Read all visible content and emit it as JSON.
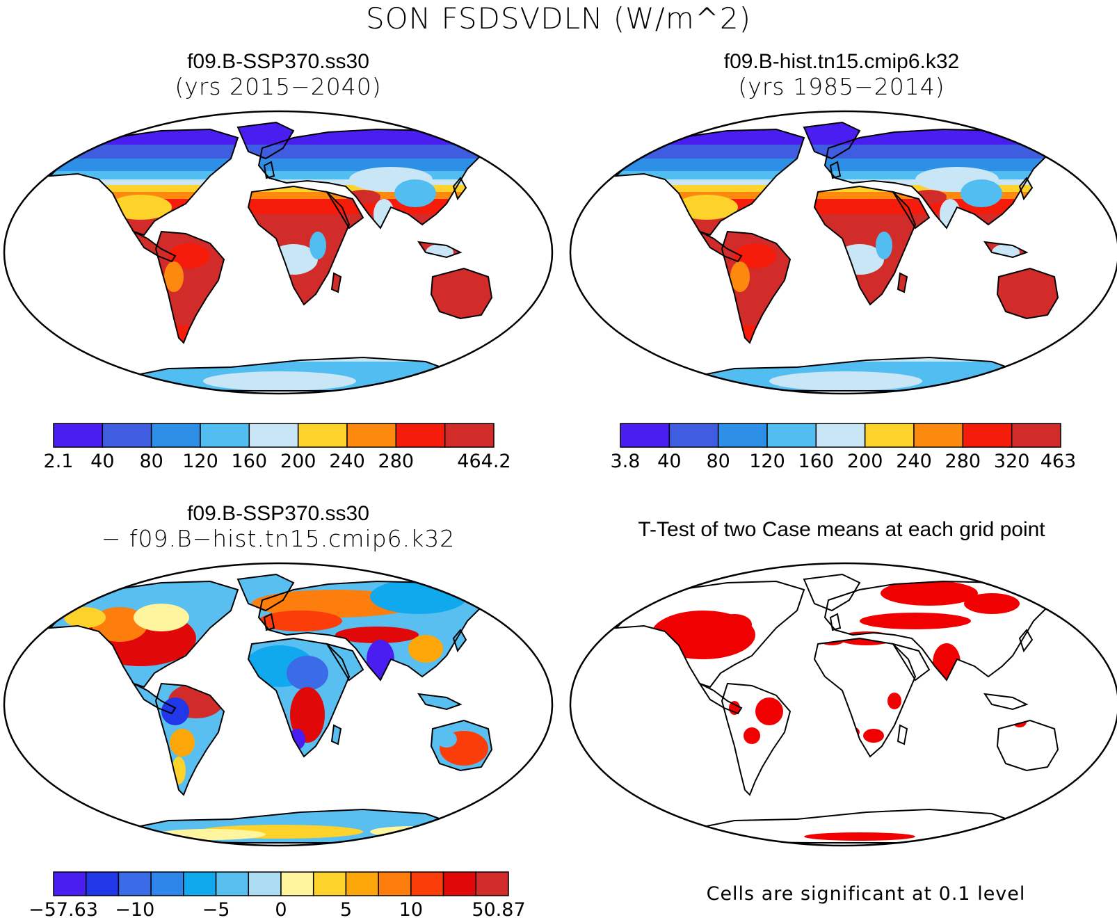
{
  "title": "SON FSDSVDLN (W/m^2)",
  "colors": {
    "flux_palette": [
      "#4a1ef0",
      "#3f5de0",
      "#2e8fe6",
      "#52bdf0",
      "#c8e6f6",
      "#fdd22b",
      "#fd8a0f",
      "#f51c0c",
      "#d22c2a"
    ],
    "diff_palette": [
      "#4a1ef0",
      "#2237e8",
      "#3a6ce8",
      "#2e86ea",
      "#11a9ee",
      "#59bff0",
      "#aeddf3",
      "#fff59e",
      "#fdd22b",
      "#fda70b",
      "#fd7d0d",
      "#fb3d0a",
      "#e00808",
      "#d22c2a"
    ],
    "significance": "#f00000",
    "land_outline": "#000000"
  },
  "chart_data": [
    {
      "type": "heatmap",
      "projection": "robinson",
      "title": "f09.B-SSP370.ss30",
      "subtitle": "(yrs 2015−2040)",
      "colorbar": {
        "labels": [
          "2.1",
          "40",
          "80",
          "120",
          "160",
          "200",
          "240",
          "280",
          "464.2"
        ],
        "boundaries": [
          2.1,
          40,
          80,
          120,
          160,
          200,
          240,
          280,
          320,
          464.2
        ]
      }
    },
    {
      "type": "heatmap",
      "projection": "robinson",
      "title": "f09.B-hist.tn15.cmip6.k32",
      "subtitle": "(yrs 1985−2014)",
      "colorbar": {
        "labels": [
          "3.8",
          "40",
          "80",
          "120",
          "160",
          "200",
          "240",
          "280",
          "320",
          "463"
        ],
        "boundaries": [
          3.8,
          40,
          80,
          120,
          160,
          200,
          240,
          280,
          320,
          463
        ]
      }
    },
    {
      "type": "heatmap",
      "projection": "robinson",
      "title": "f09.B-SSP370.ss30",
      "subtitle": "− f09.B−hist.tn15.cmip6.k32",
      "colorbar": {
        "labels": [
          "−57.63",
          "−10",
          "−5",
          "0",
          "5",
          "10",
          "50.87"
        ],
        "boundaries": [
          -57.63,
          -15,
          -10,
          -7.5,
          -5,
          -2.5,
          0,
          2.5,
          5,
          7.5,
          10,
          15,
          20,
          25,
          50.87
        ]
      }
    },
    {
      "type": "heatmap",
      "projection": "robinson",
      "title": "T-Test of two Case means at each grid point",
      "note": "Cells are significant at 0.1 level"
    }
  ]
}
